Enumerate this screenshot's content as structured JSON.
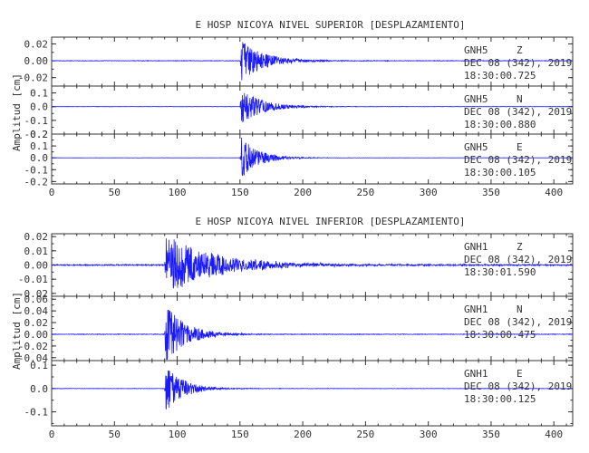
{
  "chart_data": [
    {
      "type": "line",
      "title": "E HOSP NICOYA NIVEL SUPERIOR [DESPLAZAMIENTO]",
      "ylabel": "Amplitud [cm]",
      "xlim": [
        0,
        415
      ],
      "xticks": [
        "0",
        "50",
        "100",
        "150",
        "200",
        "250",
        "300",
        "350",
        "400"
      ],
      "grid": false,
      "panels": [
        {
          "station": "GNH5",
          "component": "Z",
          "date": "DEC 08 (342), 2019",
          "time": "18:30:00.725",
          "ylim": [
            -0.03,
            0.028
          ],
          "yticks": [
            "0.02",
            "0.00",
            "-0.02"
          ],
          "onset_s": 150,
          "peak": 0.025,
          "duration_s": 95,
          "noise": 0.0003
        },
        {
          "station": "GNH5",
          "component": "N",
          "date": "DEC 08 (342), 2019",
          "time": "18:30:00.880",
          "ylim": [
            -0.2,
            0.15
          ],
          "yticks": [
            "0.1",
            "0.0",
            "-0.1",
            "-0.2"
          ],
          "onset_s": 150,
          "peak": 0.13,
          "duration_s": 90,
          "noise": 0.001
        },
        {
          "station": "GNH5",
          "component": "E",
          "date": "DEC 08 (342), 2019",
          "time": "18:30:00.105",
          "ylim": [
            -0.22,
            0.2
          ],
          "yticks": [
            "0.2",
            "0.1",
            "0.0",
            "-0.1",
            "-0.2"
          ],
          "onset_s": 150,
          "peak": 0.19,
          "duration_s": 70,
          "noise": 0.001
        }
      ]
    },
    {
      "type": "line",
      "title": "E HOSP NICOYA NIVEL INFERIOR [DESPLAZAMIENTO]",
      "ylabel": "Amplitud [cm]",
      "xlim": [
        0,
        415
      ],
      "xticks": [
        "0",
        "50",
        "100",
        "150",
        "200",
        "250",
        "300",
        "350",
        "400"
      ],
      "grid": false,
      "panels": [
        {
          "station": "GNH1",
          "component": "Z",
          "date": "DEC 08 (342), 2019",
          "time": "18:30:01.590",
          "ylim": [
            -0.022,
            0.022
          ],
          "yticks": [
            "0.02",
            "0.01",
            "0.00",
            "-0.01",
            "-0.02"
          ],
          "onset_s": 90,
          "peak": 0.021,
          "duration_s": 200,
          "noise": 0.0004
        },
        {
          "station": "GNH1",
          "component": "N",
          "date": "DEC 08 (342), 2019",
          "time": "18:30:00.475",
          "ylim": [
            -0.045,
            0.065
          ],
          "yticks": [
            "0.06",
            "0.04",
            "0.02",
            "0.00",
            "-0.02",
            "-0.04"
          ],
          "onset_s": 90,
          "peak": 0.055,
          "duration_s": 80,
          "noise": 0.0005
        },
        {
          "station": "GNH1",
          "component": "E",
          "date": "DEC 08 (342), 2019",
          "time": "18:30:00.125",
          "ylim": [
            -0.16,
            0.12
          ],
          "yticks": [
            "0.1",
            "0.0",
            "-0.1"
          ],
          "onset_s": 90,
          "peak": 0.11,
          "duration_s": 70,
          "noise": 0.0008
        }
      ]
    }
  ]
}
